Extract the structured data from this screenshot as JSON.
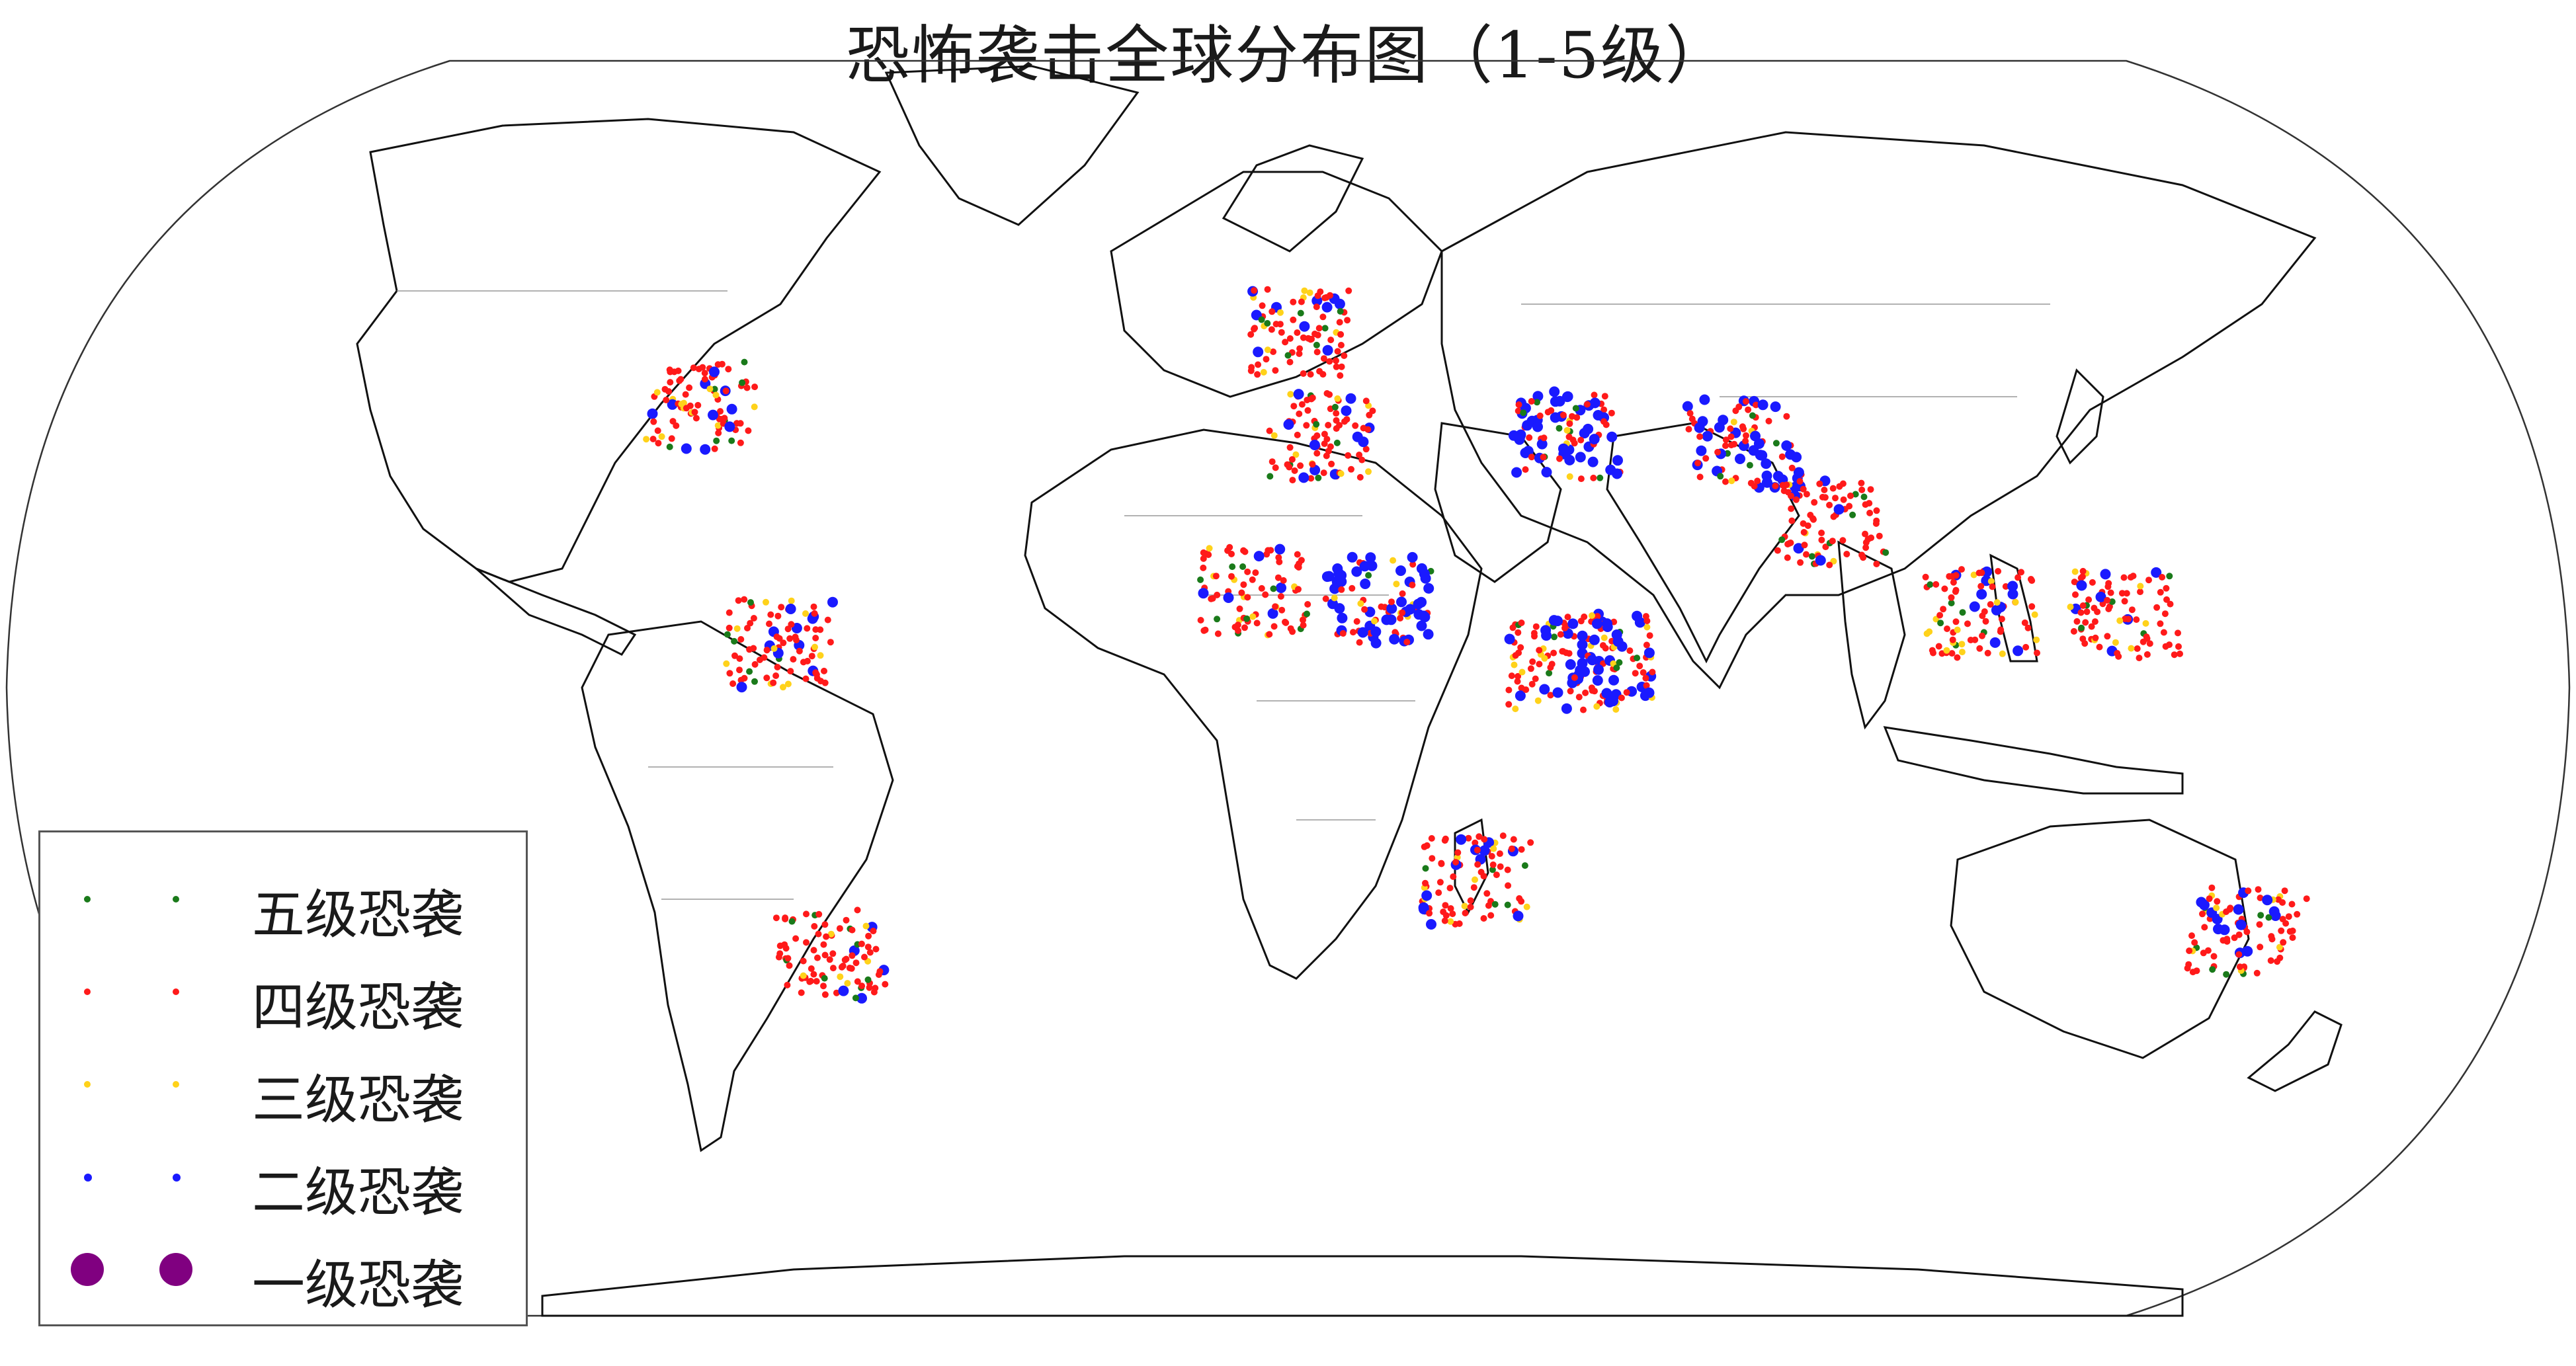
{
  "title": "恐怖袭击全球分布图（1-5级）",
  "legend": [
    {
      "label": "五级恐袭",
      "color": "#1a7a1a",
      "symbol": "small-dot"
    },
    {
      "label": "四级恐袭",
      "color": "#ff1a1a",
      "symbol": "small-dot"
    },
    {
      "label": "三级恐袭",
      "color": "#ffd21a",
      "symbol": "small-dot"
    },
    {
      "label": "二级恐袭",
      "color": "#1a1aff",
      "symbol": "small-dot"
    },
    {
      "label": "一级恐袭",
      "color": "#800080",
      "symbol": "large-dot"
    }
  ],
  "map": {
    "projection": "robinson-like",
    "hotspots": [
      {
        "region": "United States",
        "level": 4,
        "lon": -90,
        "lat": 38
      },
      {
        "region": "Colombia",
        "level": 4,
        "lon": -74,
        "lat": 6
      },
      {
        "region": "Western Europe",
        "level": 4,
        "lon": 2,
        "lat": 48
      },
      {
        "region": "North Africa",
        "level": 4,
        "lon": 5,
        "lat": 34
      },
      {
        "region": "West Africa / Sahel",
        "level": 4,
        "lon": -5,
        "lat": 13
      },
      {
        "region": "Nigeria / Lake Chad",
        "level": 2,
        "lon": 13,
        "lat": 12
      },
      {
        "region": "Iraq / Syria",
        "level": 2,
        "lon": 42,
        "lat": 34
      },
      {
        "region": "East Africa",
        "level": 4,
        "lon": 40,
        "lat": 3
      },
      {
        "region": "Somalia",
        "level": 2,
        "lon": 45,
        "lat": 4
      },
      {
        "region": "Afghanistan / Pakistan",
        "level": 2,
        "lon": 69,
        "lat": 33
      },
      {
        "region": "India",
        "level": 4,
        "lon": 80,
        "lat": 22
      },
      {
        "region": "Southeast Asia",
        "level": 4,
        "lon": 101,
        "lat": 10
      },
      {
        "region": "Philippines",
        "level": 4,
        "lon": 122,
        "lat": 10
      },
      {
        "region": "Southern Africa",
        "level": 4,
        "lon": 28,
        "lat": -26
      },
      {
        "region": "Chile / Argentina",
        "level": 4,
        "lon": -70,
        "lat": -36
      },
      {
        "region": "Australia",
        "level": 4,
        "lon": 145,
        "lat": -33
      }
    ]
  }
}
